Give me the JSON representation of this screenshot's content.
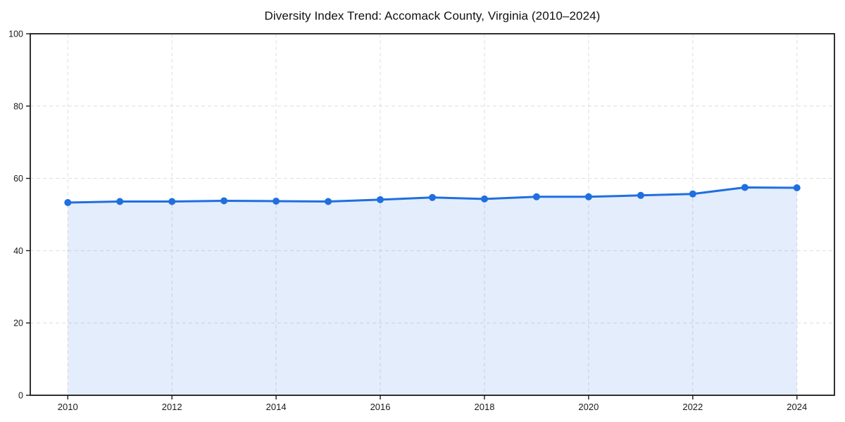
{
  "figure": {
    "background": "#ffffff"
  },
  "chart_data": {
    "type": "line",
    "title": "Diversity Index Trend: Accomack County, Virginia (2010–2024)",
    "xlabel": "",
    "ylabel": "",
    "x": [
      2010,
      2011,
      2012,
      2013,
      2014,
      2015,
      2016,
      2017,
      2018,
      2019,
      2020,
      2021,
      2022,
      2023,
      2024
    ],
    "series": [
      {
        "name": "Diversity Index",
        "values": [
          53.3,
          53.6,
          53.6,
          53.8,
          53.7,
          53.6,
          54.1,
          54.7,
          54.3,
          54.9,
          54.9,
          55.3,
          55.7,
          57.5,
          57.4
        ],
        "line_color": "#1f6fe0",
        "marker": "circle",
        "marker_radius": 5,
        "area_fill": true,
        "fill_color": "#1f6fe0",
        "fill_opacity": 0.12
      }
    ],
    "xlim": [
      2009.28,
      2024.72
    ],
    "ylim": [
      0,
      100
    ],
    "xticks": [
      2010,
      2012,
      2014,
      2016,
      2018,
      2020,
      2022,
      2024
    ],
    "yticks": [
      0,
      20,
      40,
      60,
      80,
      100
    ],
    "grid": "dashed",
    "grid_color": "#dddddd",
    "axis_color": "#1a1a1a",
    "tick_label_color": "#1a1a1a",
    "legend": false
  }
}
